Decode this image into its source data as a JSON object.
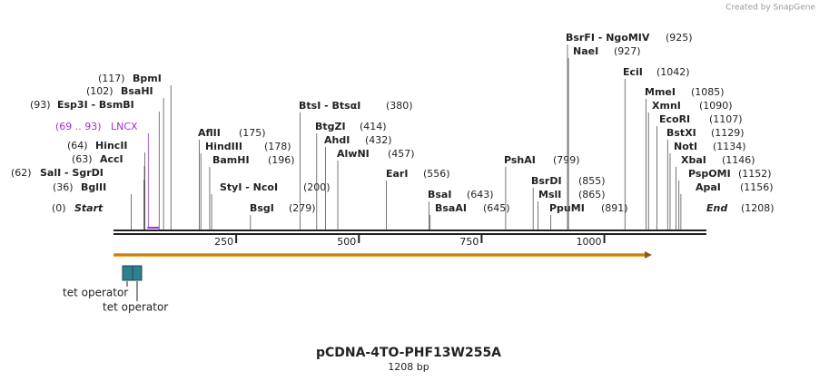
{
  "credit": "Created by SnapGene",
  "title": "pCDNA-4TO-PHF13W255A",
  "subtitle": "1208 bp",
  "start": {
    "name": "Start",
    "position": "(0)"
  },
  "end": {
    "name": "End",
    "position": "(1208)"
  },
  "feature": {
    "name": "LNCX",
    "range": "(69 .. 93)"
  },
  "ruler": {
    "ticks": [
      "250",
      "500",
      "750",
      "1000"
    ]
  },
  "operators": [
    "tet operator",
    "tet operator"
  ],
  "sites": [
    {
      "name": "BpmI",
      "position": "(117)"
    },
    {
      "name": "BsaHI",
      "position": "(102)"
    },
    {
      "name": "Esp3I  -  BsmBI",
      "position": "(93)"
    },
    {
      "name": "HincII",
      "position": "(64)"
    },
    {
      "name": "AccI",
      "position": "(63)"
    },
    {
      "name": "SalI  -  SgrDI",
      "position": "(62)"
    },
    {
      "name": "BglII",
      "position": "(36)"
    },
    {
      "name": "AflII",
      "position": "(175)"
    },
    {
      "name": "HindIII",
      "position": "(178)"
    },
    {
      "name": "BamHI",
      "position": "(196)"
    },
    {
      "name": "StyI  -  NcoI",
      "position": "(200)"
    },
    {
      "name": "BsgI",
      "position": "(279)"
    },
    {
      "name": "BtsI  -  BtsαI",
      "position": "(380)"
    },
    {
      "name": "BtgZI",
      "position": "(414)"
    },
    {
      "name": "AhdI",
      "position": "(432)"
    },
    {
      "name": "AlwNI",
      "position": "(457)"
    },
    {
      "name": "EarI",
      "position": "(556)"
    },
    {
      "name": "BsaI",
      "position": "(643)"
    },
    {
      "name": "BsaAI",
      "position": "(645)"
    },
    {
      "name": "PshAI",
      "position": "(799)"
    },
    {
      "name": "BsrDI",
      "position": "(855)"
    },
    {
      "name": "MslI",
      "position": "(865)"
    },
    {
      "name": "PpuMI",
      "position": "(891)"
    },
    {
      "name": "BsrFI  -  NgoMIV",
      "position": "(925)"
    },
    {
      "name": "NaeI",
      "position": "(927)"
    },
    {
      "name": "EciI",
      "position": "(1042)"
    },
    {
      "name": "MmeI",
      "position": "(1085)"
    },
    {
      "name": "XmnI",
      "position": "(1090)"
    },
    {
      "name": "EcoRI",
      "position": "(1107)"
    },
    {
      "name": "BstXI",
      "position": "(1129)"
    },
    {
      "name": "NotI",
      "position": "(1134)"
    },
    {
      "name": "XbaI",
      "position": "(1146)"
    },
    {
      "name": "PspOMI",
      "position": "(1152)"
    },
    {
      "name": "ApaI",
      "position": "(1156)"
    }
  ]
}
